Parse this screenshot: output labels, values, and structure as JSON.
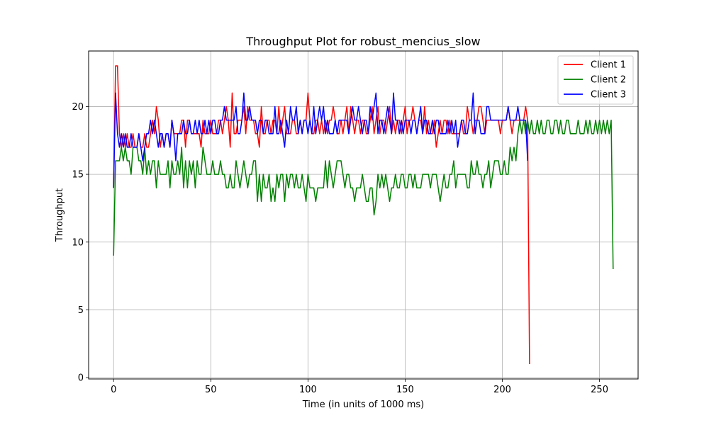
{
  "chart_data": {
    "type": "line",
    "title": "Throughput Plot for robust_mencius_slow",
    "xlabel": "Time (in units of 1000 ms)",
    "ylabel": "Throughput",
    "xlim": [
      -12.85,
      269.85
    ],
    "ylim": [
      -0.1,
      24.1
    ],
    "xticks": [
      0,
      50,
      100,
      150,
      200,
      250
    ],
    "yticks": [
      0,
      5,
      10,
      15,
      20
    ],
    "grid": true,
    "legend_position": "top-right",
    "series": [
      {
        "name": "Client 1",
        "color": "#ff0000",
        "x_start": 0,
        "values": [
          14,
          23,
          23,
          18,
          17,
          18,
          17,
          18,
          17,
          17,
          18,
          17,
          17,
          18,
          17,
          17,
          18,
          17,
          17,
          18,
          19,
          18,
          20,
          19,
          17,
          18,
          17,
          18,
          18,
          17,
          19,
          18,
          18,
          18,
          18,
          19,
          19,
          17,
          19,
          19,
          18,
          18,
          18,
          18,
          18,
          17,
          19,
          18,
          18,
          18,
          19,
          18,
          18,
          18,
          19,
          19,
          18,
          19,
          20,
          19,
          17,
          21,
          18,
          18,
          19,
          19,
          19,
          20,
          18,
          20,
          19,
          19,
          19,
          18,
          18,
          17,
          20,
          18,
          18,
          19,
          19,
          18,
          19,
          19,
          18,
          20,
          18,
          19,
          20,
          18,
          18,
          18,
          19,
          19,
          18,
          18,
          19,
          18,
          19,
          19,
          21,
          19,
          18,
          18,
          19,
          19,
          18,
          19,
          18,
          19,
          18,
          19,
          19,
          20,
          19,
          18,
          18,
          19,
          18,
          19,
          20,
          18,
          20,
          19,
          18,
          19,
          19,
          18,
          19,
          19,
          18,
          18,
          19,
          20,
          18,
          19,
          20,
          18,
          19,
          19,
          18,
          19,
          20,
          18,
          19,
          18,
          19,
          19,
          18,
          19,
          20,
          18,
          19,
          19,
          20,
          19,
          18,
          19,
          19,
          18,
          20,
          18,
          19,
          18,
          18,
          19,
          17,
          18,
          19,
          18,
          19,
          19,
          18,
          19,
          18,
          18,
          18,
          18,
          18,
          19,
          18,
          18,
          20,
          19,
          19,
          18,
          19,
          19,
          20,
          20,
          19,
          18,
          19,
          19,
          19,
          19,
          19,
          19,
          19,
          18,
          19,
          19,
          19,
          20,
          19,
          18,
          19,
          19,
          19,
          19,
          19,
          19,
          20,
          19,
          1
        ]
      },
      {
        "name": "Client 2",
        "color": "#008000",
        "x_start": 0,
        "values": [
          9,
          16,
          16,
          16,
          17,
          16,
          17,
          16,
          16,
          15,
          17,
          17,
          17,
          16,
          16,
          15,
          17,
          15,
          16,
          15,
          16,
          16,
          14,
          16,
          15,
          15,
          15,
          15,
          16,
          14,
          16,
          15,
          15,
          16,
          15,
          17,
          14,
          16,
          14,
          16,
          15,
          16,
          14,
          16,
          15,
          15,
          17,
          16,
          15,
          15,
          15,
          16,
          15,
          15,
          15,
          16,
          15,
          15,
          14,
          14,
          15,
          14,
          14,
          16,
          15,
          14,
          15,
          16,
          15,
          14,
          15,
          15,
          16,
          16,
          13,
          15,
          13,
          15,
          14,
          14,
          15,
          13,
          14,
          13,
          15,
          14,
          15,
          15,
          13,
          15,
          14,
          15,
          15,
          14,
          15,
          14,
          14,
          15,
          14,
          13,
          15,
          14,
          14,
          14,
          13,
          14,
          14,
          14,
          14,
          16,
          14,
          16,
          15,
          14,
          15,
          16,
          16,
          16,
          15,
          14,
          15,
          15,
          14,
          14,
          13,
          14,
          14,
          14,
          15,
          14,
          13,
          13,
          14,
          14,
          12,
          13,
          15,
          14,
          15,
          14,
          15,
          14,
          13,
          14,
          14,
          15,
          14,
          14,
          15,
          15,
          14,
          14,
          15,
          15,
          14,
          15,
          14,
          14,
          14,
          15,
          15,
          15,
          15,
          14,
          15,
          15,
          15,
          14,
          13,
          14,
          15,
          14,
          14,
          15,
          15,
          16,
          14,
          15,
          15,
          15,
          15,
          15,
          14,
          14,
          16,
          15,
          15,
          16,
          15,
          15,
          14,
          15,
          15,
          16,
          14,
          15,
          16,
          16,
          16,
          15,
          15,
          16,
          15,
          15,
          17,
          16,
          17,
          16,
          18,
          19,
          18,
          19,
          18,
          19,
          18,
          19,
          18,
          18,
          19,
          18,
          19,
          18,
          18,
          19,
          19,
          18,
          18,
          19,
          19,
          18,
          19,
          18,
          18,
          19,
          19,
          18,
          18,
          18,
          18,
          19,
          18,
          18,
          18,
          19,
          18,
          19,
          18,
          18,
          19,
          18,
          19,
          18,
          19,
          18,
          19,
          18,
          19,
          8
        ]
      },
      {
        "name": "Client 3",
        "color": "#0000ff",
        "x_start": 0,
        "values": [
          14,
          21,
          18,
          17,
          18,
          17,
          18,
          17,
          17,
          18,
          17,
          17,
          17,
          18,
          17,
          16,
          17,
          18,
          18,
          19,
          18,
          19,
          18,
          17,
          18,
          18,
          17,
          18,
          18,
          17,
          19,
          18,
          16,
          18,
          18,
          18,
          19,
          18,
          18,
          19,
          18,
          18,
          19,
          18,
          19,
          18,
          18,
          19,
          18,
          19,
          18,
          19,
          19,
          18,
          18,
          19,
          19,
          20,
          19,
          19,
          19,
          19,
          19,
          20,
          18,
          18,
          19,
          21,
          19,
          19,
          20,
          19,
          19,
          19,
          18,
          19,
          19,
          18,
          19,
          19,
          18,
          18,
          18,
          20,
          18,
          18,
          19,
          18,
          17,
          19,
          18,
          20,
          19,
          19,
          20,
          18,
          19,
          18,
          19,
          19,
          18,
          19,
          18,
          20,
          18,
          19,
          20,
          19,
          20,
          18,
          19,
          18,
          18,
          18,
          19,
          18,
          19,
          19,
          19,
          19,
          19,
          18,
          19,
          20,
          19,
          19,
          20,
          19,
          18,
          19,
          19,
          18,
          20,
          19,
          20,
          21,
          18,
          19,
          19,
          18,
          19,
          20,
          19,
          18,
          21,
          19,
          19,
          18,
          19,
          18,
          19,
          19,
          19,
          18,
          19,
          19,
          18,
          19,
          20,
          18,
          19,
          19,
          18,
          18,
          19,
          18,
          19,
          19,
          18,
          18,
          18,
          18,
          19,
          18,
          19,
          18,
          19,
          17,
          18,
          19,
          19,
          18,
          18,
          19,
          19,
          21,
          18,
          19,
          19,
          18,
          18,
          18,
          20,
          20,
          19,
          19,
          19,
          19,
          19,
          19,
          19,
          19,
          19,
          20,
          19,
          19,
          19,
          19,
          20,
          19,
          19,
          19,
          19,
          16
        ]
      }
    ]
  }
}
